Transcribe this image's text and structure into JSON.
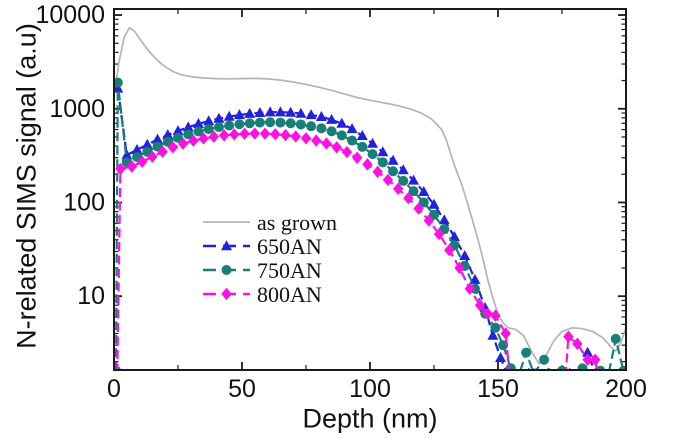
{
  "figure_colors": {
    "background": "#ffffff",
    "frame": "#1a1a1a",
    "text": "#111111",
    "as_grown": "#b4b4b6",
    "blue_650": "#2222dd",
    "teal_750": "#187f78",
    "magenta_800": "#fb12e2"
  },
  "chart_data": {
    "type": "line",
    "title": "",
    "xlabel": "Depth (nm)",
    "ylabel": "N-related SIMS signal (a.u)",
    "x_range": [
      0,
      200
    ],
    "y_scale": "log",
    "y_range": [
      1.63,
      11600
    ],
    "x_major_ticks": [
      0,
      50,
      100,
      150,
      200
    ],
    "x_minor_ticks": [
      25,
      75,
      125,
      175
    ],
    "y_major_ticks": [
      10,
      100,
      1000,
      10000
    ],
    "grid": false,
    "legend_position": "inside-left-middle",
    "series": [
      {
        "name": "as grown",
        "color": "#b4b4b6",
        "marker": "none",
        "line": "solid",
        "points": [
          [
            1,
            2100
          ],
          [
            2,
            3200
          ],
          [
            4,
            5800
          ],
          [
            6,
            7300
          ],
          [
            8,
            6700
          ],
          [
            10,
            5600
          ],
          [
            12,
            4700
          ],
          [
            14,
            4000
          ],
          [
            16,
            3500
          ],
          [
            18,
            3100
          ],
          [
            20,
            2800
          ],
          [
            23,
            2500
          ],
          [
            26,
            2320
          ],
          [
            30,
            2200
          ],
          [
            35,
            2130
          ],
          [
            40,
            2100
          ],
          [
            45,
            2090
          ],
          [
            50,
            2100
          ],
          [
            55,
            2110
          ],
          [
            60,
            2080
          ],
          [
            65,
            2020
          ],
          [
            70,
            1930
          ],
          [
            75,
            1820
          ],
          [
            80,
            1700
          ],
          [
            85,
            1570
          ],
          [
            90,
            1440
          ],
          [
            95,
            1320
          ],
          [
            100,
            1230
          ],
          [
            105,
            1160
          ],
          [
            108,
            1120
          ],
          [
            112,
            1060
          ],
          [
            116,
            990
          ],
          [
            120,
            900
          ],
          [
            124,
            780
          ],
          [
            128,
            600
          ],
          [
            130,
            450
          ],
          [
            132,
            300
          ],
          [
            134,
            210
          ],
          [
            136,
            150
          ],
          [
            138,
            100
          ],
          [
            140,
            65
          ],
          [
            142,
            42
          ],
          [
            144,
            26
          ],
          [
            146,
            15
          ],
          [
            148,
            9.5
          ],
          [
            150,
            6.5
          ],
          [
            152,
            5.2
          ],
          [
            154,
            4.6
          ],
          [
            157,
            4.4
          ],
          [
            160,
            3.8
          ],
          [
            163,
            2.6
          ],
          [
            166,
            1.9
          ],
          [
            169,
            2.4
          ],
          [
            172,
            3.4
          ],
          [
            175,
            4.2
          ],
          [
            179,
            4.6
          ],
          [
            183,
            4.5
          ],
          [
            187,
            4.2
          ],
          [
            191,
            3.6
          ],
          [
            194,
            2.9
          ],
          [
            196,
            2.6
          ],
          [
            198,
            3.2
          ],
          [
            200,
            4.6
          ]
        ]
      },
      {
        "name": "650AN",
        "color": "#2222dd",
        "marker": "triangle",
        "line": "dashed",
        "points": [
          [
            1.5,
            1650
          ],
          [
            5,
            320
          ],
          [
            9,
            365
          ],
          [
            13,
            415
          ],
          [
            17,
            470
          ],
          [
            21,
            525
          ],
          [
            25,
            580
          ],
          [
            29,
            635
          ],
          [
            33,
            690
          ],
          [
            37,
            740
          ],
          [
            41,
            785
          ],
          [
            45,
            825
          ],
          [
            49,
            860
          ],
          [
            53,
            885
          ],
          [
            57,
            905
          ],
          [
            61,
            918
          ],
          [
            65,
            920
          ],
          [
            69,
            910
          ],
          [
            73,
            890
          ],
          [
            77,
            860
          ],
          [
            81,
            820
          ],
          [
            85,
            765
          ],
          [
            89,
            695
          ],
          [
            93,
            610
          ],
          [
            97,
            515
          ],
          [
            101,
            425
          ],
          [
            105,
            345
          ],
          [
            109,
            280
          ],
          [
            113,
            222
          ],
          [
            117,
            172
          ],
          [
            121,
            130
          ],
          [
            125,
            95
          ],
          [
            129,
            65
          ],
          [
            133,
            43
          ],
          [
            137,
            27
          ],
          [
            141,
            15
          ],
          [
            145,
            7.5
          ],
          [
            148,
            3.8
          ],
          [
            151,
            2.2
          ],
          [
            154,
            1.4
          ],
          [
            158,
            1.3
          ],
          [
            162,
            1.5
          ],
          [
            166,
            1.3
          ],
          [
            170,
            1.5
          ],
          [
            174,
            1.3
          ],
          [
            178,
            1.5
          ],
          [
            181,
            1.3
          ],
          [
            185,
            2.5
          ],
          [
            188,
            1.5
          ],
          [
            192,
            1.3
          ]
        ]
      },
      {
        "name": "750AN",
        "color": "#187f78",
        "marker": "circle",
        "line": "dashed",
        "points": [
          [
            0.8,
            1.6
          ],
          [
            1.5,
            1900
          ],
          [
            5,
            268
          ],
          [
            9,
            305
          ],
          [
            13,
            348
          ],
          [
            17,
            395
          ],
          [
            21,
            443
          ],
          [
            25,
            490
          ],
          [
            29,
            533
          ],
          [
            33,
            572
          ],
          [
            37,
            607
          ],
          [
            41,
            637
          ],
          [
            45,
            662
          ],
          [
            49,
            683
          ],
          [
            53,
            700
          ],
          [
            57,
            712
          ],
          [
            61,
            718
          ],
          [
            65,
            712
          ],
          [
            69,
            700
          ],
          [
            73,
            680
          ],
          [
            77,
            652
          ],
          [
            81,
            618
          ],
          [
            85,
            575
          ],
          [
            89,
            520
          ],
          [
            93,
            458
          ],
          [
            97,
            392
          ],
          [
            101,
            328
          ],
          [
            105,
            268
          ],
          [
            109,
            215
          ],
          [
            113,
            170
          ],
          [
            117,
            132
          ],
          [
            121,
            100
          ],
          [
            125,
            74
          ],
          [
            129,
            52
          ],
          [
            133,
            35
          ],
          [
            137,
            21
          ],
          [
            141,
            12
          ],
          [
            145,
            6.5
          ],
          [
            149,
            4.6
          ],
          [
            152,
            3.0
          ],
          [
            155,
            1.7
          ],
          [
            158,
            1.4
          ],
          [
            161,
            2.5
          ],
          [
            164,
            1.5
          ],
          [
            168,
            2.1
          ],
          [
            171,
            1.4
          ],
          [
            175,
            1.6
          ],
          [
            179,
            1.4
          ],
          [
            183,
            1.7
          ],
          [
            187,
            1.4
          ],
          [
            190,
            1.6
          ],
          [
            193,
            1.4
          ],
          [
            196,
            3.5
          ],
          [
            199,
            1.6
          ]
        ]
      },
      {
        "name": "800AN",
        "color": "#fb12e2",
        "marker": "diamond",
        "line": "dashed",
        "points": [
          [
            1.2,
            1.1
          ],
          [
            2.5,
            228
          ],
          [
            7,
            242
          ],
          [
            11,
            272
          ],
          [
            15,
            308
          ],
          [
            19,
            348
          ],
          [
            23,
            388
          ],
          [
            27,
            424
          ],
          [
            31,
            456
          ],
          [
            35,
            482
          ],
          [
            39,
            503
          ],
          [
            43,
            520
          ],
          [
            47,
            532
          ],
          [
            51,
            540
          ],
          [
            55,
            544
          ],
          [
            59,
            542
          ],
          [
            63,
            535
          ],
          [
            67,
            523
          ],
          [
            71,
            506
          ],
          [
            75,
            484
          ],
          [
            79,
            458
          ],
          [
            83,
            426
          ],
          [
            87,
            388
          ],
          [
            91,
            345
          ],
          [
            95,
            300
          ],
          [
            99,
            255
          ],
          [
            103,
            212
          ],
          [
            107,
            174
          ],
          [
            111,
            140
          ],
          [
            115,
            111
          ],
          [
            119,
            86
          ],
          [
            123,
            64
          ],
          [
            127,
            46
          ],
          [
            131,
            31
          ],
          [
            135,
            20
          ],
          [
            139,
            12
          ],
          [
            143,
            8
          ],
          [
            146,
            6.5
          ],
          [
            149,
            6.2
          ],
          [
            153,
            4.0
          ],
          [
            155,
            1.0
          ],
          [
            176,
            1.0
          ],
          [
            177.5,
            3.7
          ],
          [
            181,
            3.1
          ],
          [
            185,
            2.1
          ],
          [
            188,
            2.1
          ],
          [
            190,
            1.0
          ]
        ]
      }
    ]
  }
}
